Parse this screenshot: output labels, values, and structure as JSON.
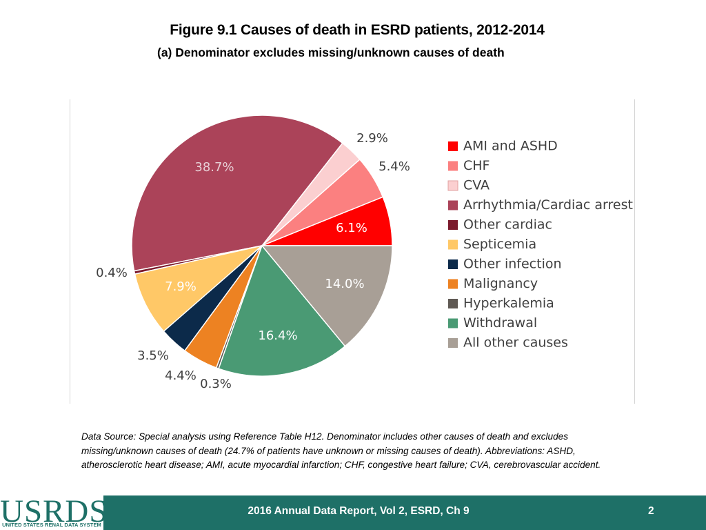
{
  "header": {
    "title": "Figure 9.1 Causes of death in ESRD patients, 2012-2014",
    "subtitle": "(a) Denominator excludes missing/unknown causes of death"
  },
  "chart_data": {
    "type": "pie",
    "title": "Figure 9.1 Causes of death in ESRD patients, 2012-2014",
    "subtitle": "(a) Denominator excludes missing/unknown causes of death",
    "legend_position": "right",
    "slices": [
      {
        "label": "AMI and ASHD",
        "value": 6.1,
        "display": "6.1%",
        "color": "#ff0000",
        "label_color": "#ffffff"
      },
      {
        "label": "CHF",
        "value": 5.4,
        "display": "5.4%",
        "color": "#fb8080",
        "label_color": "#404040"
      },
      {
        "label": "CVA",
        "value": 2.9,
        "display": "2.9%",
        "color": "#fbcfd0",
        "label_color": "#404040"
      },
      {
        "label": "Arrhythmia/Cardiac arrest",
        "value": 38.7,
        "display": "38.7%",
        "color": "#ab4359",
        "label_color": "#e7cfd5"
      },
      {
        "label": "Other cardiac",
        "value": 0.4,
        "display": "0.4%",
        "color": "#7b1a2c",
        "label_color": "#404040"
      },
      {
        "label": "Septicemia",
        "value": 7.9,
        "display": "7.9%",
        "color": "#ffc867",
        "label_color": "#ffffff"
      },
      {
        "label": "Other infection",
        "value": 3.5,
        "display": "3.5%",
        "color": "#0c2a4a",
        "label_color": "#404040"
      },
      {
        "label": "Malignancy",
        "value": 4.4,
        "display": "4.4%",
        "color": "#ed8222",
        "label_color": "#404040"
      },
      {
        "label": "Hyperkalemia",
        "value": 0.3,
        "display": "0.3%",
        "color": "#5f5953",
        "label_color": "#404040"
      },
      {
        "label": "Withdrawal",
        "value": 16.4,
        "display": "16.4%",
        "color": "#4a9a74",
        "label_color": "#ffffff"
      },
      {
        "label": "All other causes",
        "value": 14.0,
        "display": "14.0%",
        "color": "#a89f96",
        "label_color": "#ffffff"
      }
    ]
  },
  "footnote": "Data Source: Special analysis using Reference Table H12. Denominator includes other causes of death and excludes missing/unknown causes of death (24.7% of patients have unknown or missing causes of death). Abbreviations: ASHD, atherosclerotic heart disease; AMI, acute myocardial infarction; CHF, congestive heart failure; CVA, cerebrovascular accident.",
  "footer": {
    "logo_text": "USRDS",
    "logo_subtext": "UNITED STATES RENAL DATA SYSTEM",
    "report": "2016 Annual Data Report, Vol 2, ESRD, Ch 9",
    "page": "2"
  }
}
